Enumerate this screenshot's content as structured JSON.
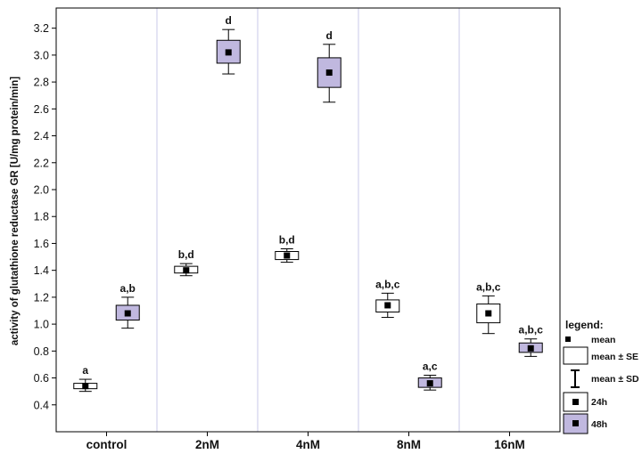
{
  "chart_data": {
    "type": "box",
    "ylabel": "activity of glutathione reductase GR [U/mg protein/min]",
    "ylim": [
      0.2,
      3.35
    ],
    "yticks": [
      0.4,
      0.6,
      0.8,
      1.0,
      1.2,
      1.4,
      1.6,
      1.8,
      2.0,
      2.2,
      2.4,
      2.6,
      2.8,
      3.0,
      3.2
    ],
    "ytick_labels": [
      "0.4",
      "0.6",
      "0.8",
      "1.0",
      "1.2",
      "1.4",
      "1.6",
      "1.8",
      "2.0",
      "2.2",
      "2.4",
      "2.6",
      "2.8",
      "3.0",
      "3.2"
    ],
    "categories": [
      "control",
      "2nM",
      "4nM",
      "8nM",
      "16nM"
    ],
    "series": [
      {
        "name": "24h",
        "color": "#ffffff",
        "mean": [
          0.54,
          1.4,
          1.51,
          1.14,
          1.08
        ],
        "se_low": [
          0.52,
          1.38,
          1.48,
          1.09,
          1.01
        ],
        "se_high": [
          0.56,
          1.43,
          1.54,
          1.18,
          1.15
        ],
        "sd_low": [
          0.5,
          1.36,
          1.46,
          1.05,
          0.93
        ],
        "sd_high": [
          0.59,
          1.45,
          1.56,
          1.23,
          1.21
        ],
        "annotations": [
          "a",
          "b,d",
          "b,d",
          "a,b,c",
          "a,b,c"
        ]
      },
      {
        "name": "48h",
        "color": "#c0b8df",
        "mean": [
          1.08,
          3.02,
          2.87,
          0.56,
          0.82
        ],
        "se_low": [
          1.03,
          2.94,
          2.76,
          0.53,
          0.79
        ],
        "se_high": [
          1.14,
          3.11,
          2.98,
          0.6,
          0.86
        ],
        "sd_low": [
          0.97,
          2.86,
          2.65,
          0.51,
          0.76
        ],
        "sd_high": [
          1.2,
          3.19,
          3.08,
          0.62,
          0.89
        ],
        "annotations": [
          "a,b",
          "d",
          "d",
          "a,c",
          "a,b,c"
        ]
      }
    ],
    "legend": {
      "title": "legend:",
      "items": [
        "mean",
        "mean ± SE",
        "mean ± SD",
        "24h",
        "48h"
      ],
      "position": "right"
    },
    "grid": "vertical category separators"
  }
}
